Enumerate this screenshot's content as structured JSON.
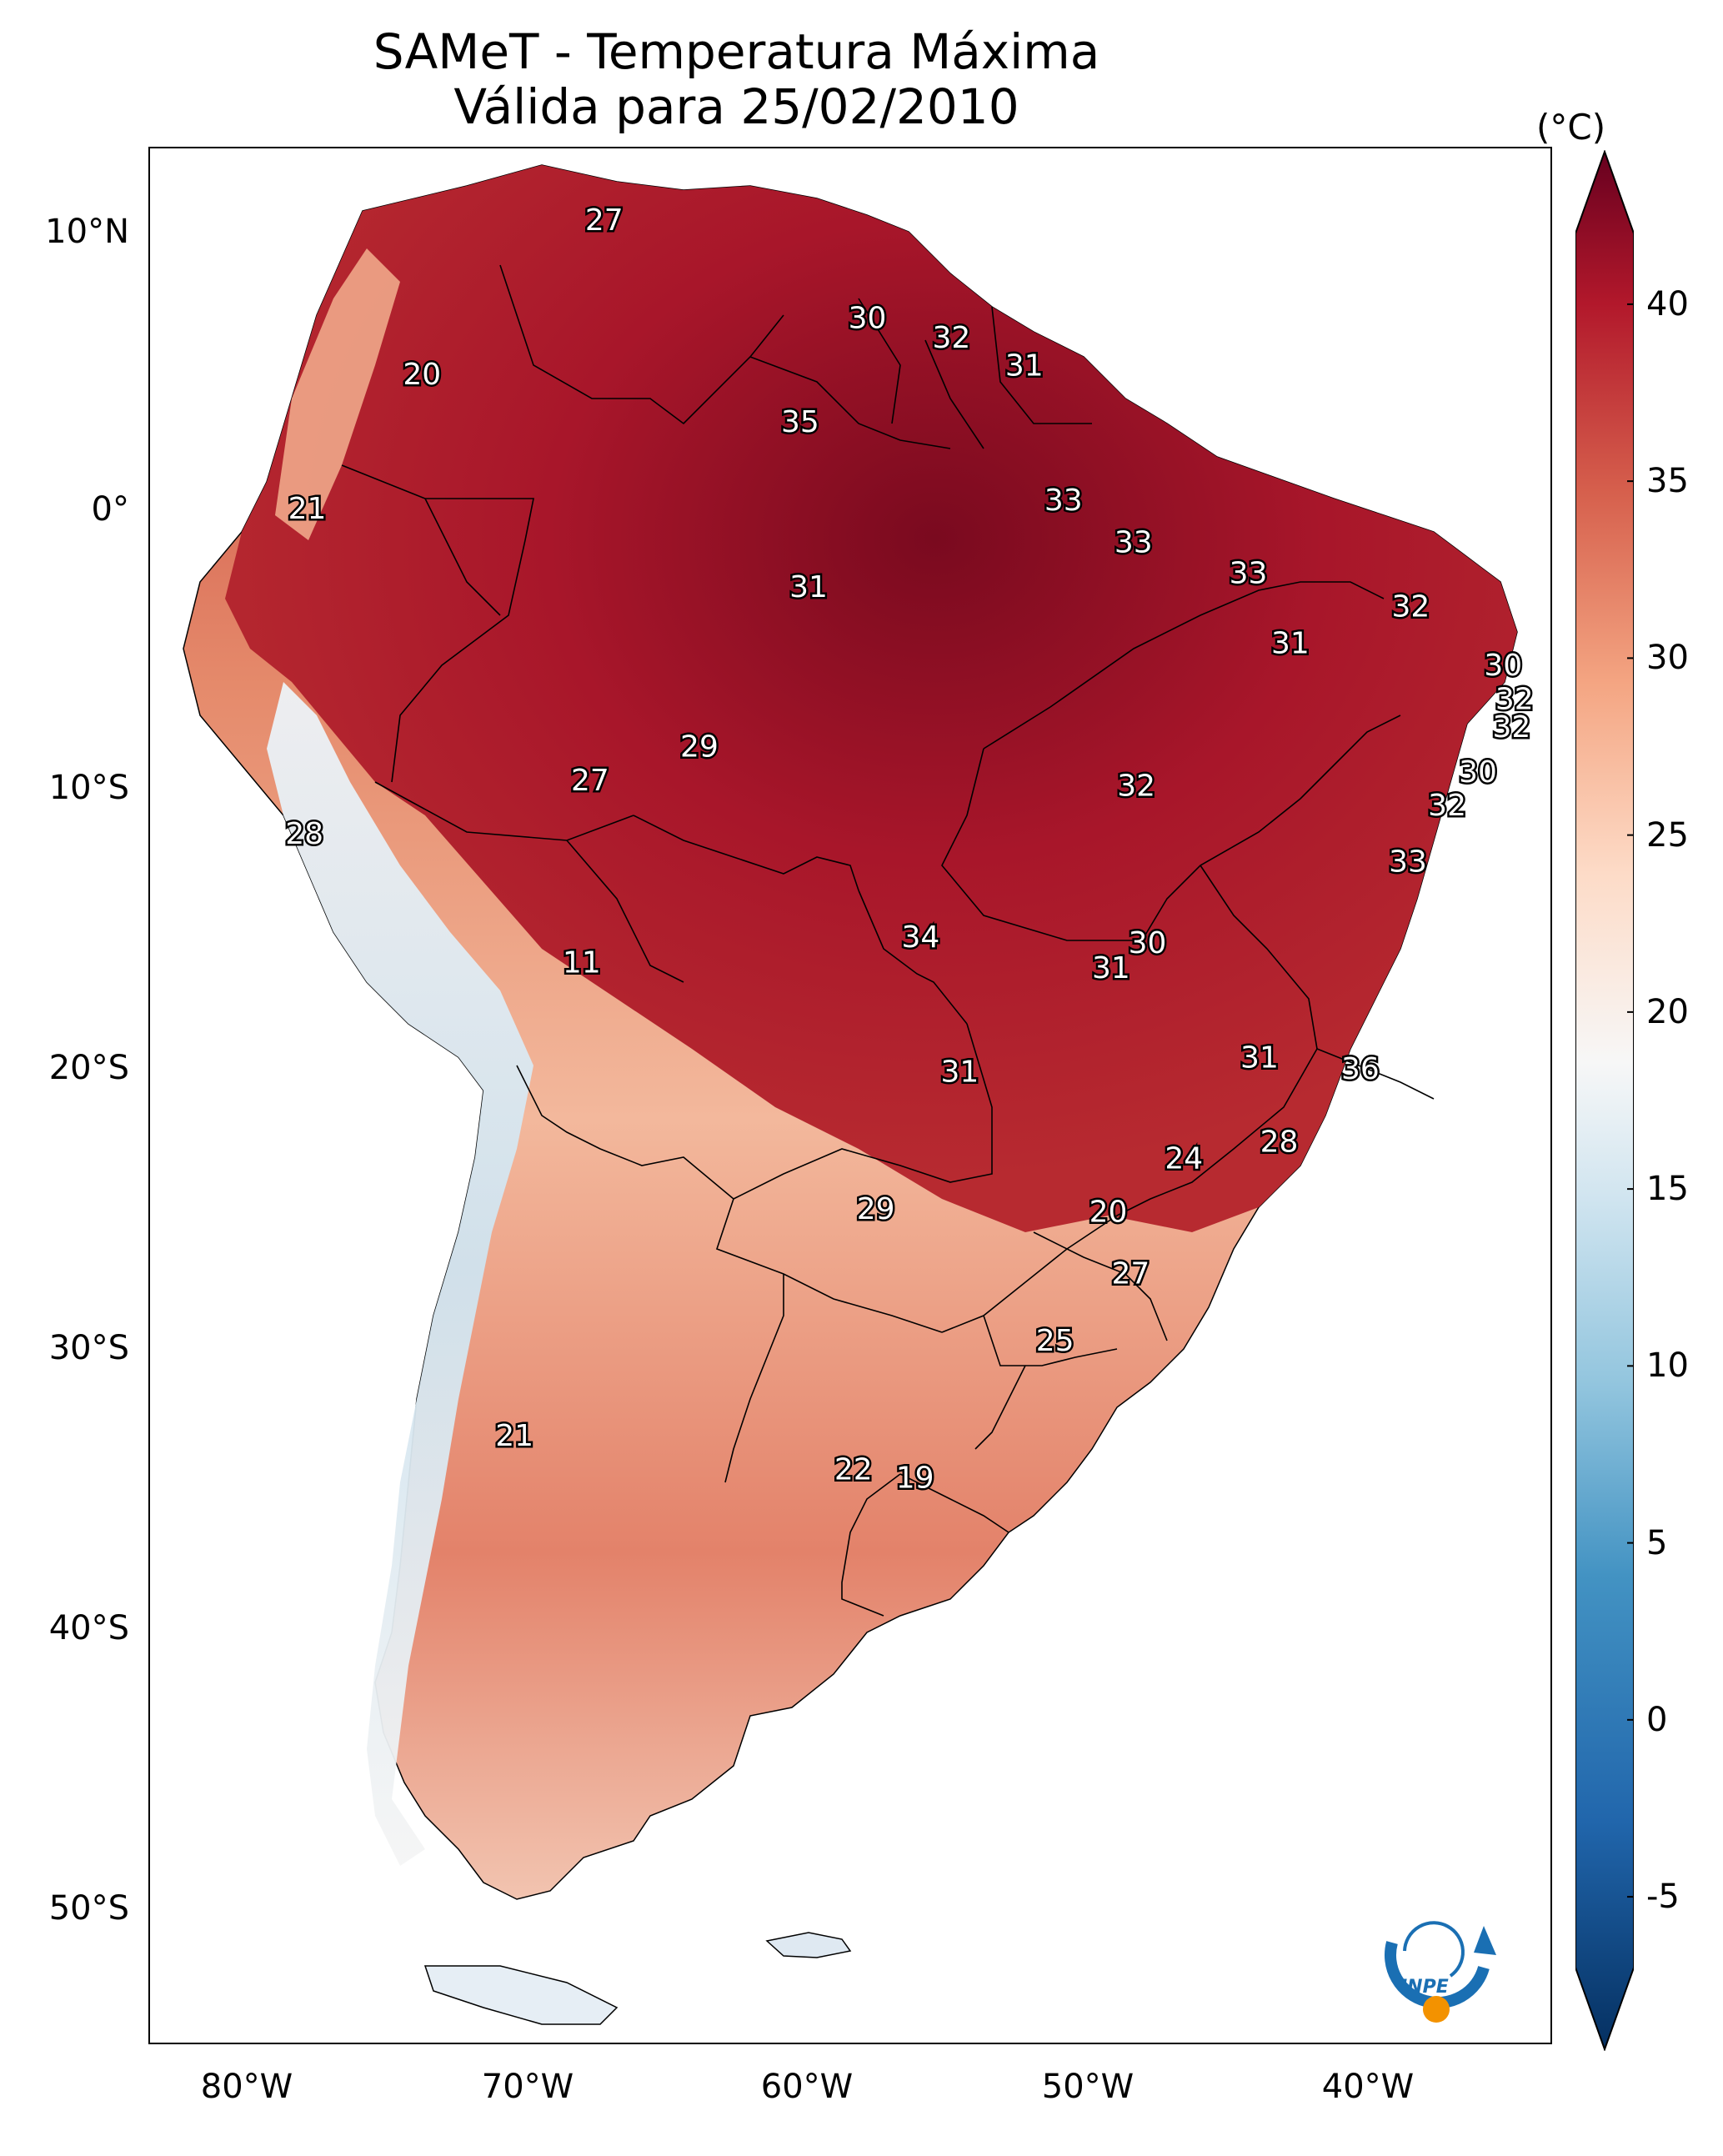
{
  "title": {
    "line1": "SAMeT - Temperatura Máxima",
    "line2": "Válida para 25/02/2010"
  },
  "axes": {
    "lat_ticks": [
      "10°N",
      "0°",
      "10°S",
      "20°S",
      "30°S",
      "40°S",
      "50°S"
    ],
    "lon_ticks": [
      "80°W",
      "70°W",
      "60°W",
      "50°W",
      "40°W"
    ]
  },
  "colorbar": {
    "unit": "(°C)",
    "min": -7,
    "max": 42,
    "tick_values": [
      -5,
      0,
      5,
      10,
      15,
      20,
      25,
      30,
      35,
      40
    ],
    "tick_labels": [
      "-5",
      "0",
      "5",
      "10",
      "15",
      "20",
      "25",
      "30",
      "35",
      "40"
    ],
    "colors": [
      "#053061",
      "#2166ac",
      "#4393c3",
      "#92c5de",
      "#d1e5f0",
      "#f7f7f7",
      "#fddbc7",
      "#f4a582",
      "#d6604d",
      "#b2182b",
      "#67001f"
    ]
  },
  "stations": [
    {
      "value": "27",
      "lon": -67.3,
      "lat": 10.0
    },
    {
      "value": "30",
      "lon": -57.9,
      "lat": 6.5
    },
    {
      "value": "32",
      "lon": -54.9,
      "lat": 5.8
    },
    {
      "value": "31",
      "lon": -52.3,
      "lat": 4.8
    },
    {
      "value": "20",
      "lon": -73.8,
      "lat": 4.5
    },
    {
      "value": "35",
      "lon": -60.3,
      "lat": 2.8
    },
    {
      "value": "33",
      "lon": -50.9,
      "lat": 0.0
    },
    {
      "value": "21",
      "lon": -77.9,
      "lat": -0.3
    },
    {
      "value": "33",
      "lon": -48.4,
      "lat": -1.5
    },
    {
      "value": "31",
      "lon": -60.0,
      "lat": -3.1
    },
    {
      "value": "33",
      "lon": -44.3,
      "lat": -2.6
    },
    {
      "value": "32",
      "lon": -38.5,
      "lat": -3.8
    },
    {
      "value": "31",
      "lon": -42.8,
      "lat": -5.1
    },
    {
      "value": "30",
      "lon": -35.2,
      "lat": -5.9
    },
    {
      "value": "32",
      "lon": -34.8,
      "lat": -7.1
    },
    {
      "value": "32",
      "lon": -34.9,
      "lat": -8.1
    },
    {
      "value": "29",
      "lon": -63.9,
      "lat": -8.8
    },
    {
      "value": "27",
      "lon": -67.8,
      "lat": -10.0
    },
    {
      "value": "30",
      "lon": -36.1,
      "lat": -9.7
    },
    {
      "value": "32",
      "lon": -48.3,
      "lat": -10.2
    },
    {
      "value": "32",
      "lon": -37.2,
      "lat": -10.9
    },
    {
      "value": "28",
      "lon": -78.0,
      "lat": -11.9
    },
    {
      "value": "33",
      "lon": -38.6,
      "lat": -12.9
    },
    {
      "value": "34",
      "lon": -56.0,
      "lat": -15.6
    },
    {
      "value": "30",
      "lon": -47.9,
      "lat": -15.8
    },
    {
      "value": "31",
      "lon": -49.2,
      "lat": -16.7
    },
    {
      "value": "11",
      "lon": -68.1,
      "lat": -16.5
    },
    {
      "value": "31",
      "lon": -54.6,
      "lat": -20.4
    },
    {
      "value": "31",
      "lon": -43.9,
      "lat": -19.9
    },
    {
      "value": "36",
      "lon": -40.3,
      "lat": -20.3
    },
    {
      "value": "28",
      "lon": -43.2,
      "lat": -22.9
    },
    {
      "value": "24",
      "lon": -46.6,
      "lat": -23.5
    },
    {
      "value": "29",
      "lon": -57.6,
      "lat": -25.3
    },
    {
      "value": "20",
      "lon": -49.3,
      "lat": -25.4
    },
    {
      "value": "27",
      "lon": -48.5,
      "lat": -27.6
    },
    {
      "value": "25",
      "lon": -51.2,
      "lat": -30.0
    },
    {
      "value": "21",
      "lon": -70.5,
      "lat": -33.4
    },
    {
      "value": "22",
      "lon": -58.4,
      "lat": -34.6
    },
    {
      "value": "19",
      "lon": -56.2,
      "lat": -34.9
    }
  ],
  "logo": {
    "text": "INPE"
  }
}
